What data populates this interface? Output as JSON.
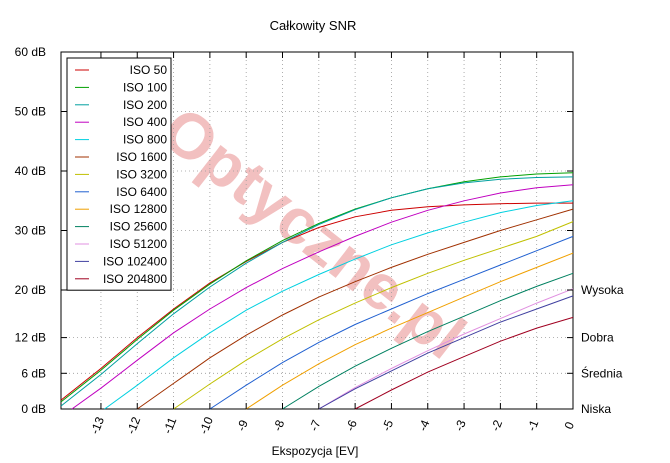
{
  "chart_data": {
    "type": "line",
    "title": "Całkowity SNR",
    "xlabel": "Ekspozycja [EV]",
    "ylabel": "",
    "xlim": [
      -14.1,
      0
    ],
    "ylim": [
      0,
      60
    ],
    "x_ticks": [
      -13,
      -12,
      -11,
      -10,
      -9,
      -8,
      -7,
      -6,
      -5,
      -4,
      -3,
      -2,
      -1,
      0
    ],
    "x_tick_labels": [
      "-13",
      "-12",
      "-11",
      "-10",
      "-9",
      "-8",
      "-7",
      "-6",
      "-5",
      "-4",
      "-3",
      "-2",
      "-1",
      "0"
    ],
    "y_ticks": [
      0,
      6,
      12,
      20,
      30,
      40,
      50,
      60
    ],
    "y_tick_labels": [
      "0 dB",
      "6 dB",
      "12 dB",
      "20 dB",
      "30 dB",
      "40 dB",
      "50 dB",
      "60 dB"
    ],
    "right_ticks": [
      0,
      6,
      12,
      20
    ],
    "right_labels": [
      "Niska",
      "Średnia",
      "Dobra",
      "Wysoka"
    ],
    "grid": true,
    "legend_position": "top-left",
    "watermark": "Optyczne.pl",
    "series": [
      {
        "name": "ISO 50",
        "color": "#cc0000",
        "x": [
          -14.1,
          -13,
          -12,
          -11,
          -10,
          -9,
          -8,
          -7,
          -6,
          -5,
          -4,
          -3,
          -2,
          -1,
          0
        ],
        "y": [
          1.5,
          6.8,
          12.0,
          16.8,
          21.2,
          24.8,
          28.0,
          30.5,
          32.3,
          33.4,
          34.0,
          34.3,
          34.5,
          34.6,
          34.6
        ]
      },
      {
        "name": "ISO 100",
        "color": "#00a000",
        "x": [
          -14.1,
          -13,
          -12,
          -11,
          -10,
          -9,
          -8,
          -7,
          -6,
          -5,
          -4,
          -3,
          -2,
          -1,
          0
        ],
        "y": [
          1.2,
          6.5,
          11.7,
          16.6,
          21.0,
          24.9,
          28.3,
          31.2,
          33.6,
          35.5,
          37.0,
          38.2,
          39.0,
          39.5,
          39.7
        ]
      },
      {
        "name": "ISO 200",
        "color": "#00a0a0",
        "x": [
          -14.1,
          -13,
          -12,
          -11,
          -10,
          -9,
          -8,
          -7,
          -6,
          -5,
          -4,
          -3,
          -2,
          -1,
          0
        ],
        "y": [
          0.5,
          5.8,
          11.0,
          16.0,
          20.5,
          24.5,
          28.0,
          31.0,
          33.5,
          35.5,
          37.0,
          38.0,
          38.6,
          38.9,
          39.0
        ]
      },
      {
        "name": "ISO 400",
        "color": "#c000c0",
        "x": [
          -13.8,
          -13,
          -12,
          -11,
          -10,
          -9,
          -8,
          -7,
          -6,
          -5,
          -4,
          -3,
          -2,
          -1,
          0
        ],
        "y": [
          0.0,
          3.5,
          8.2,
          12.8,
          16.8,
          20.4,
          23.6,
          26.4,
          29.0,
          31.4,
          33.4,
          35.0,
          36.3,
          37.2,
          37.7
        ]
      },
      {
        "name": "ISO 800",
        "color": "#00d0e0",
        "x": [
          -12.9,
          -12,
          -11,
          -10,
          -9,
          -8,
          -7,
          -6,
          -5,
          -4,
          -3,
          -2,
          -1,
          0
        ],
        "y": [
          0.0,
          4.0,
          8.6,
          12.8,
          16.6,
          19.8,
          22.6,
          25.2,
          27.6,
          29.6,
          31.4,
          33.0,
          34.2,
          35.0
        ]
      },
      {
        "name": "ISO 1600",
        "color": "#a03000",
        "x": [
          -12.0,
          -11,
          -10,
          -9,
          -8,
          -7,
          -6,
          -5,
          -4,
          -3,
          -2,
          -1,
          0
        ],
        "y": [
          0.0,
          4.3,
          8.6,
          12.4,
          15.8,
          18.8,
          21.4,
          23.8,
          26.0,
          28.0,
          30.0,
          31.8,
          33.6
        ]
      },
      {
        "name": "ISO 3200",
        "color": "#c0c000",
        "x": [
          -11.0,
          -10,
          -9,
          -8,
          -7,
          -6,
          -5,
          -4,
          -3,
          -2,
          -1,
          0
        ],
        "y": [
          0.0,
          4.2,
          8.2,
          11.8,
          15.0,
          17.8,
          20.4,
          22.8,
          25.0,
          27.0,
          29.0,
          31.5
        ]
      },
      {
        "name": "ISO 6400",
        "color": "#2060d0",
        "x": [
          -10.0,
          -9,
          -8,
          -7,
          -6,
          -5,
          -4,
          -3,
          -2,
          -1,
          0
        ],
        "y": [
          0.0,
          4.0,
          7.8,
          11.2,
          14.2,
          16.8,
          19.4,
          21.8,
          24.2,
          26.6,
          29.0
        ]
      },
      {
        "name": "ISO 12800",
        "color": "#f0a000",
        "x": [
          -9.0,
          -8,
          -7,
          -6,
          -5,
          -4,
          -3,
          -2,
          -1,
          0
        ],
        "y": [
          0.0,
          4.0,
          7.6,
          10.8,
          13.6,
          16.2,
          18.8,
          21.4,
          23.8,
          26.2
        ]
      },
      {
        "name": "ISO 25600",
        "color": "#008060",
        "x": [
          -8.0,
          -7,
          -6,
          -5,
          -4,
          -3,
          -2,
          -1,
          0
        ],
        "y": [
          0.0,
          3.8,
          7.2,
          10.2,
          13.0,
          15.6,
          18.2,
          20.6,
          22.8
        ]
      },
      {
        "name": "ISO 51200",
        "color": "#e090e0",
        "x": [
          -7.0,
          -6,
          -5,
          -4,
          -3,
          -2,
          -1,
          0
        ],
        "y": [
          0.0,
          3.6,
          6.8,
          9.8,
          12.6,
          15.2,
          17.8,
          20.2
        ]
      },
      {
        "name": "ISO 102400",
        "color": "#4040a0",
        "x": [
          -7.0,
          -6,
          -5,
          -4,
          -3,
          -2,
          -1,
          0
        ],
        "y": [
          0.0,
          3.4,
          6.4,
          9.4,
          12.0,
          14.6,
          16.8,
          19.0
        ]
      },
      {
        "name": "ISO 204800",
        "color": "#a00020",
        "x": [
          -6.0,
          -5,
          -4,
          -3,
          -2,
          -1,
          0
        ],
        "y": [
          0.0,
          3.2,
          6.2,
          8.8,
          11.4,
          13.6,
          15.4
        ]
      }
    ]
  }
}
